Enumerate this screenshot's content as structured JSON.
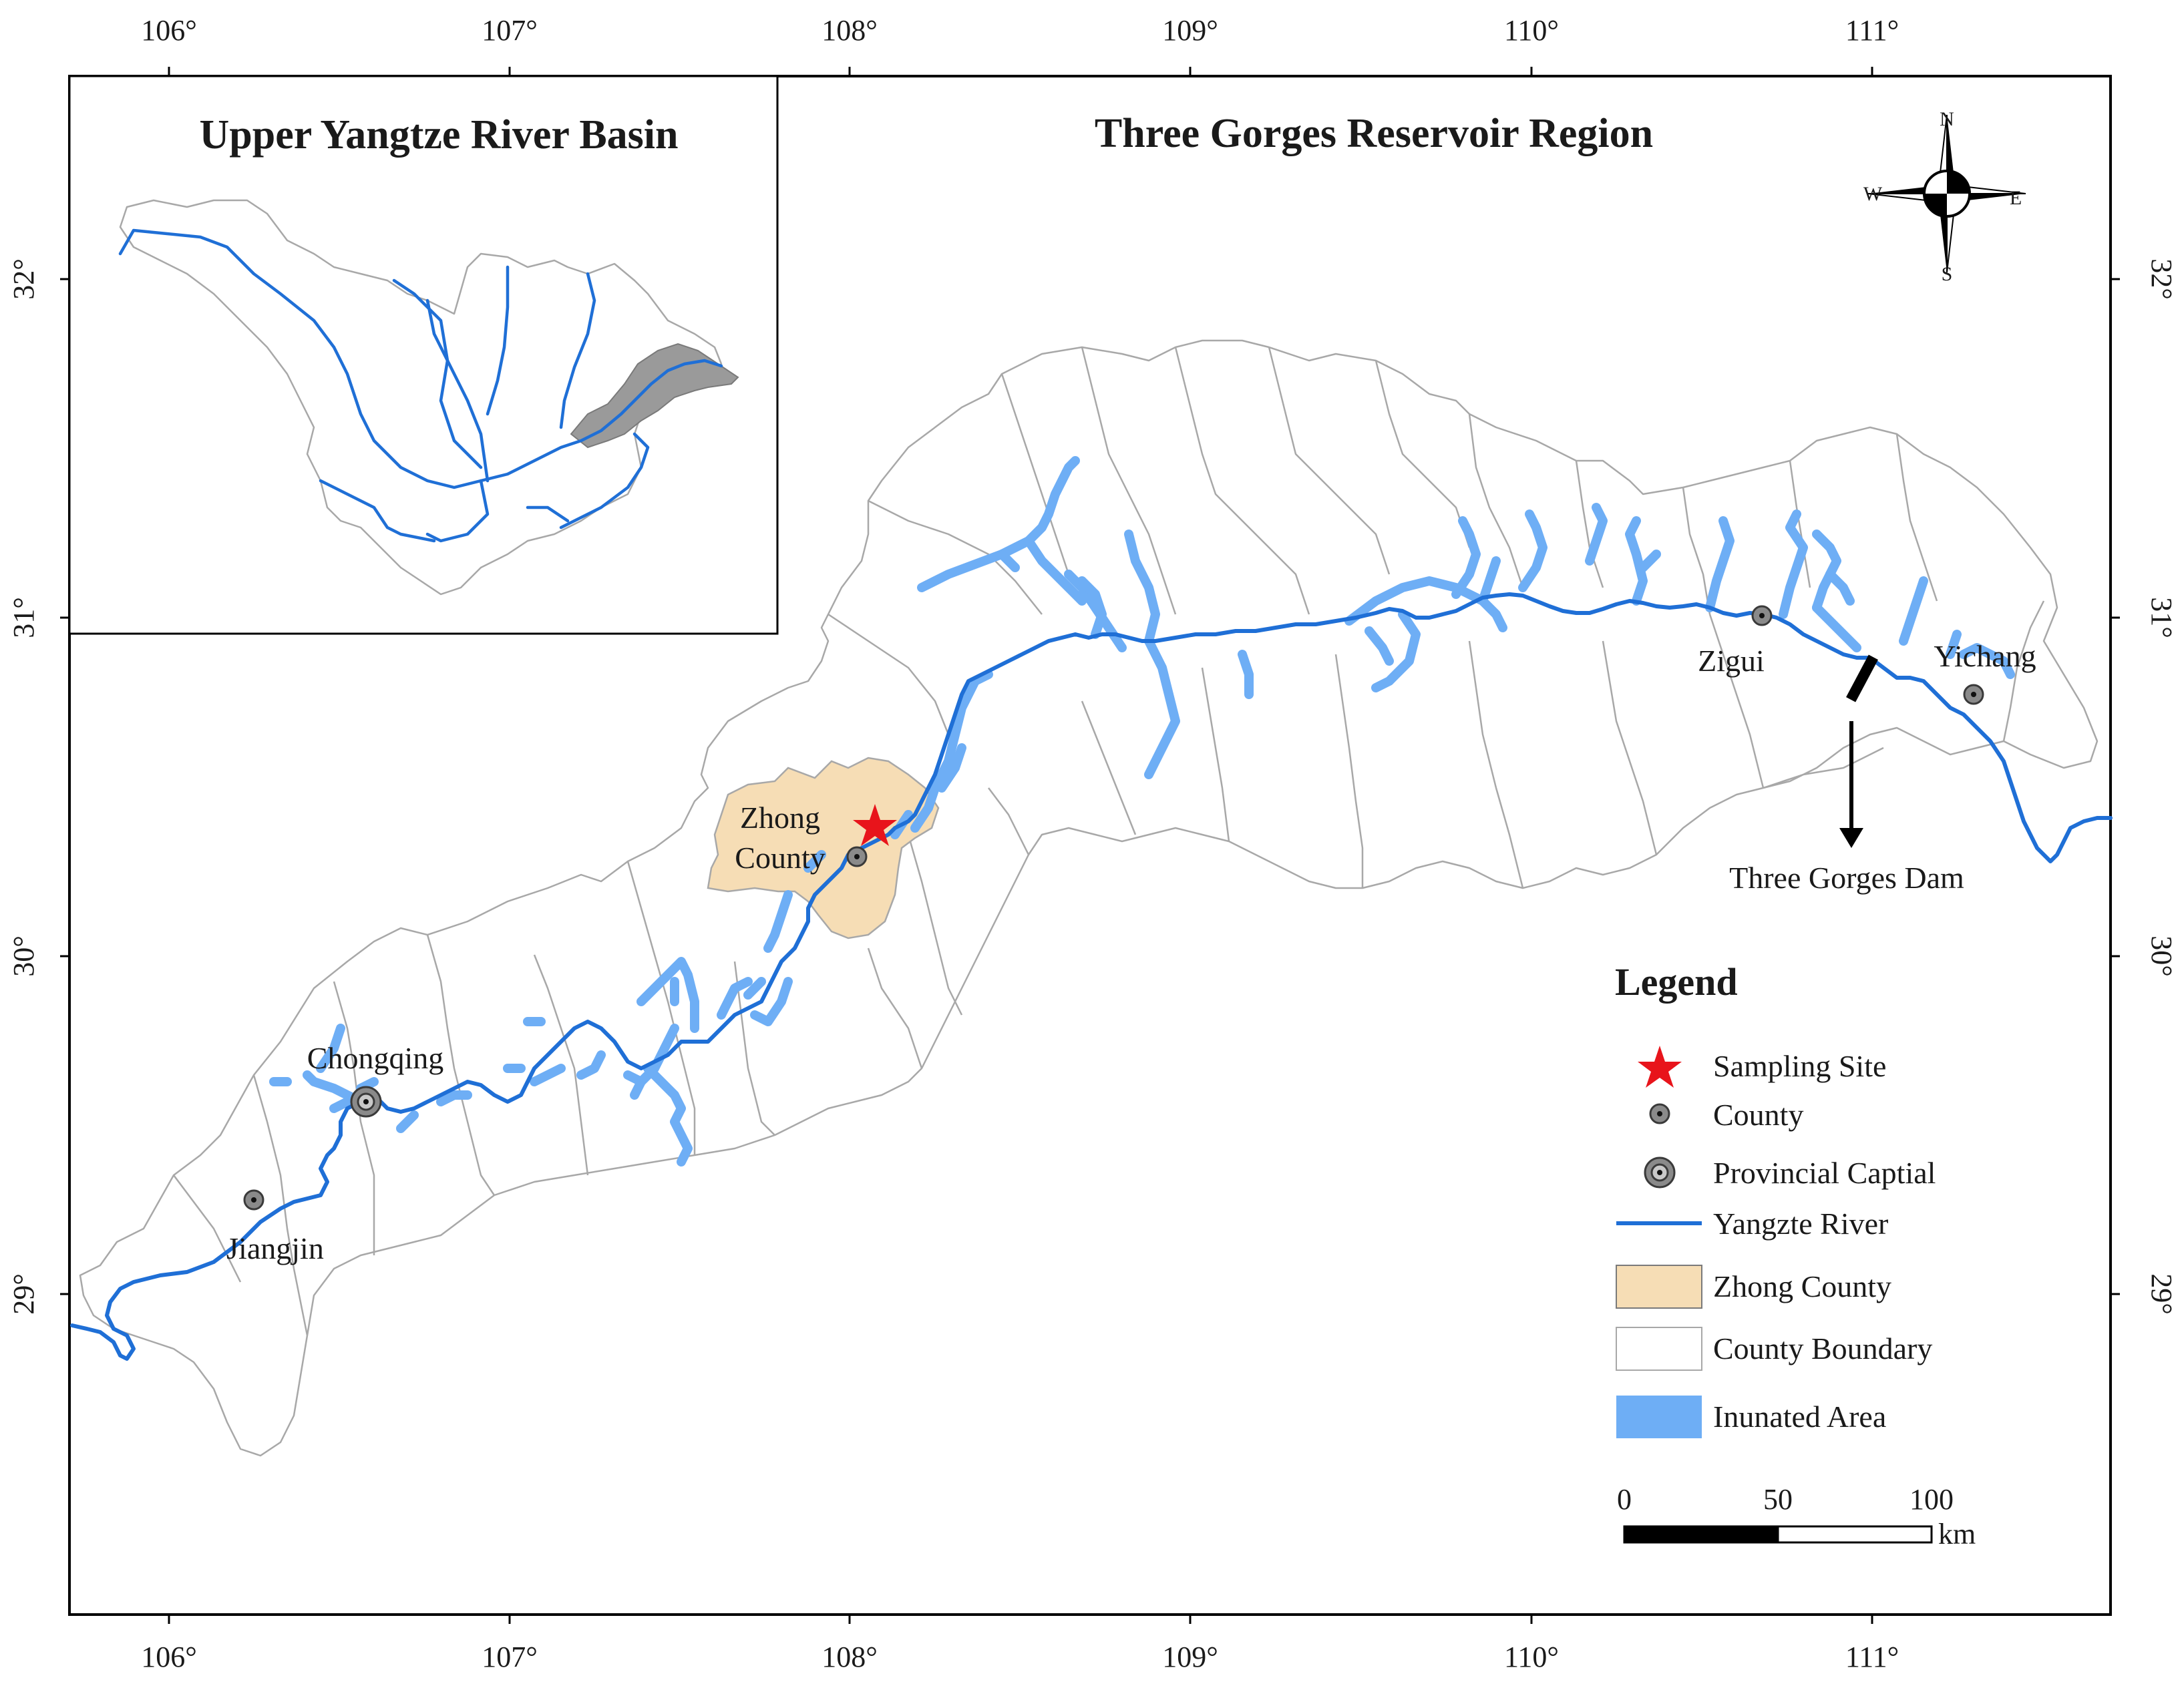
{
  "inset": {
    "title": "Upper Yangtze River Basin"
  },
  "main": {
    "title": "Three Gorges Reservoir Region"
  },
  "axes": {
    "lon_ticks": [
      "106°",
      "107°",
      "108°",
      "109°",
      "110°",
      "111°"
    ],
    "lat_ticks": [
      "29°",
      "30°",
      "31°",
      "32°"
    ]
  },
  "compass": {
    "n": "N",
    "s": "S",
    "e": "E",
    "w": "W"
  },
  "places": {
    "zhong_county": [
      "Zhong",
      "County"
    ],
    "chongqing": "Chongqing",
    "jiangjin": "Jiangjin",
    "zigui": "Zigui",
    "yichang": "Yichang",
    "dam": "Three Gorges Dam"
  },
  "legend": {
    "title": "Legend",
    "items": [
      {
        "label": "Sampling Site",
        "symbol": "red-star"
      },
      {
        "label": "County",
        "symbol": "county-dot"
      },
      {
        "label": "Provincial Captial",
        "symbol": "capital-ring"
      },
      {
        "label": "Yangzte River",
        "symbol": "river-line"
      },
      {
        "label": "Zhong County",
        "symbol": "tan-patch"
      },
      {
        "label": "County Boundary",
        "symbol": "white-patch"
      },
      {
        "label": "Inunated Area",
        "symbol": "lightblue-patch"
      }
    ]
  },
  "scalebar": {
    "ticks": [
      "0",
      "50",
      "100"
    ],
    "unit": "km"
  },
  "colors": {
    "river": "#1f6fd6",
    "inundated": "#6eaef5",
    "zhong_county": "#f6ddb5",
    "boundary": "#a8a8a8",
    "inset_highlight": "#9a9a9a",
    "sampling_site": "#e8141b",
    "county_dot": "#8a8a8a"
  }
}
